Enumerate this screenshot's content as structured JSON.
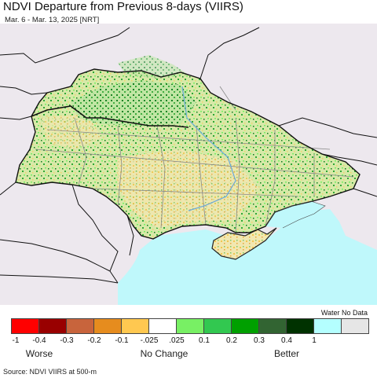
{
  "title": "NDVI Departure from Previous 8-days (VIIRS)",
  "subtitle": "Mar. 6 - Mar. 13, 2025 [NRT]",
  "legend": {
    "header": "Water No Data",
    "colors": [
      "#ff0000",
      "#990000",
      "#c8643c",
      "#e68c1e",
      "#ffc850",
      "#ffffff",
      "#78f064",
      "#32c850",
      "#00a000",
      "#326432",
      "#003200",
      "#b4ffff",
      "#e6e6e6"
    ],
    "ticks": [
      "-1",
      "-0.4",
      "-0.3",
      "-0.2",
      "-0.1",
      "-.025",
      ".025",
      "0.1",
      "0.2",
      "0.3",
      "0.4",
      "1"
    ],
    "categories": {
      "worse": "Worse",
      "nochange": "No Change",
      "better": "Better"
    }
  },
  "source": "Source: NDVI VIIRS at 500-m",
  "map_colors": {
    "land": "#ede8ee",
    "sea": "#bff8fb",
    "border": "#222222",
    "oblast": "#888888",
    "river": "#6aa8d8",
    "green": "#2fa836",
    "darkgreen": "#0b7a1c",
    "yellow": "#f1d26a"
  }
}
